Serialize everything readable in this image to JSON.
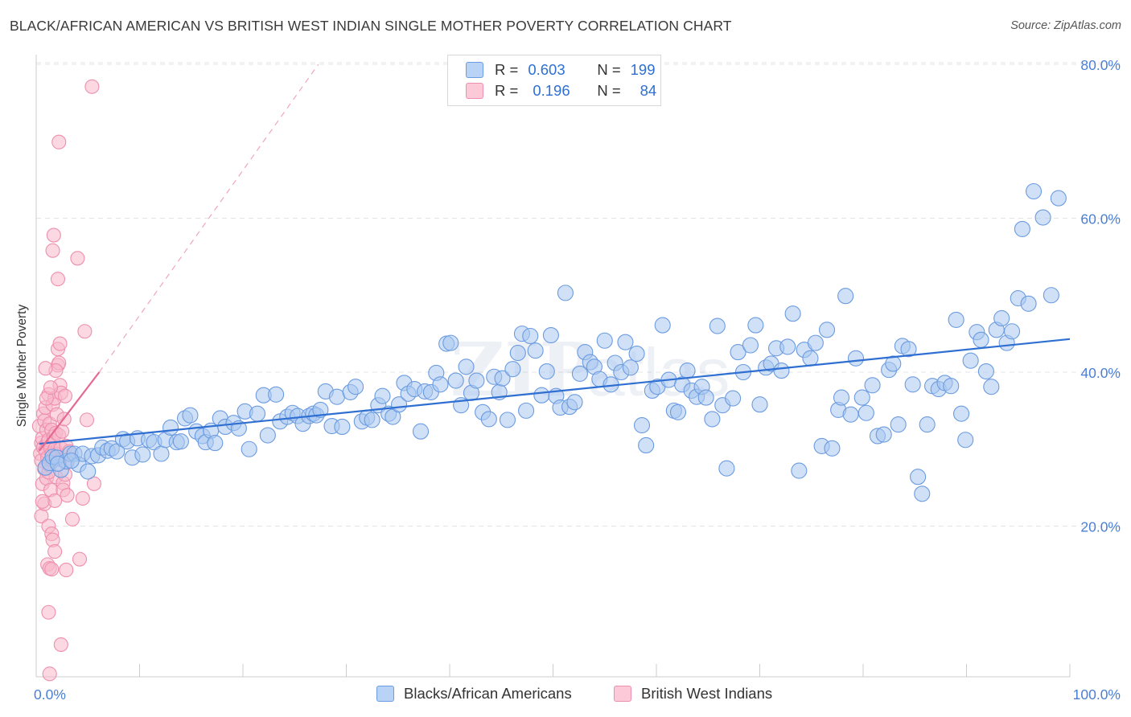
{
  "title": "BLACK/AFRICAN AMERICAN VS BRITISH WEST INDIAN SINGLE MOTHER POVERTY CORRELATION CHART",
  "source": "Source: ZipAtlas.com",
  "legend": {
    "blue": {
      "r_label": "R =",
      "r_value": "0.603",
      "n_label": "N =",
      "n_value": "199"
    },
    "pink": {
      "r_label": "R =",
      "r_value": "0.196",
      "n_label": "N =",
      "n_value": "84"
    }
  },
  "colors": {
    "blue_fill": "#aac8f0",
    "blue_stroke": "#6b9be0",
    "blue_line": "#2f6fd1",
    "pink_fill": "#f7b8cb",
    "pink_stroke": "#ee8fae",
    "pink_line": "#e46a93",
    "tick_text": "#4a7fd4",
    "grid": "#e4e4e4"
  },
  "chart_data": {
    "type": "scatter",
    "title": "BLACK/AFRICAN AMERICAN VS BRITISH WEST INDIAN SINGLE MOTHER POVERTY CORRELATION CHART",
    "xlabel": "",
    "ylabel": "Single Mother Poverty",
    "xlim": [
      0,
      100
    ],
    "ylim": [
      0,
      82
    ],
    "x_tick_labels": [
      "0.0%",
      "100.0%"
    ],
    "y_ticks": [
      20,
      40,
      60,
      80
    ],
    "y_tick_labels": [
      "20.0%",
      "40.0%",
      "60.0%",
      "80.0%"
    ],
    "grid": true,
    "legend_position": "bottom-center",
    "series": [
      {
        "name": "Blacks/African Americans",
        "color": "#aac8f0",
        "trend": {
          "x": [
            0.3,
            100
          ],
          "y": [
            30.7,
            44.3
          ]
        },
        "points": [
          [
            0.9,
            27.6
          ],
          [
            1.3,
            28.2
          ],
          [
            1.6,
            29.0
          ],
          [
            2.0,
            28.9
          ],
          [
            2.4,
            27.3
          ],
          [
            2.9,
            28.4
          ],
          [
            3.3,
            29.4
          ],
          [
            3.7,
            29.4
          ],
          [
            4.1,
            28.0
          ],
          [
            4.5,
            29.4
          ],
          [
            5.0,
            27.1
          ],
          [
            5.4,
            29.1
          ],
          [
            2.1,
            28.1
          ],
          [
            3.4,
            28.5
          ],
          [
            6.0,
            29.2
          ],
          [
            6.4,
            30.2
          ],
          [
            6.9,
            29.8
          ],
          [
            7.3,
            30.1
          ],
          [
            7.8,
            29.7
          ],
          [
            8.4,
            31.3
          ],
          [
            8.8,
            31.0
          ],
          [
            9.3,
            28.9
          ],
          [
            9.8,
            31.4
          ],
          [
            10.3,
            29.3
          ],
          [
            10.9,
            31.2
          ],
          [
            11.4,
            30.9
          ],
          [
            12.1,
            29.4
          ],
          [
            12.5,
            31.2
          ],
          [
            13.0,
            32.8
          ],
          [
            13.6,
            30.9
          ],
          [
            14.0,
            31.0
          ],
          [
            14.4,
            34.0
          ],
          [
            14.9,
            34.4
          ],
          [
            15.5,
            32.3
          ],
          [
            16.1,
            31.7
          ],
          [
            16.4,
            30.9
          ],
          [
            16.9,
            32.4
          ],
          [
            17.3,
            30.8
          ],
          [
            17.8,
            34.0
          ],
          [
            18.3,
            32.9
          ],
          [
            19.1,
            33.4
          ],
          [
            19.6,
            32.7
          ],
          [
            20.2,
            34.9
          ],
          [
            20.6,
            30.0
          ],
          [
            21.4,
            34.6
          ],
          [
            22.0,
            37.0
          ],
          [
            22.4,
            31.8
          ],
          [
            23.2,
            37.1
          ],
          [
            23.6,
            33.6
          ],
          [
            24.3,
            34.2
          ],
          [
            24.8,
            34.7
          ],
          [
            25.3,
            34.3
          ],
          [
            25.8,
            33.3
          ],
          [
            26.4,
            34.3
          ],
          [
            26.8,
            34.6
          ],
          [
            27.1,
            34.4
          ],
          [
            27.5,
            35.1
          ],
          [
            28.0,
            37.5
          ],
          [
            28.6,
            33.0
          ],
          [
            29.1,
            36.8
          ],
          [
            29.6,
            32.9
          ],
          [
            30.4,
            37.4
          ],
          [
            30.9,
            38.1
          ],
          [
            31.5,
            33.6
          ],
          [
            32.0,
            34.1
          ],
          [
            32.5,
            33.8
          ],
          [
            33.1,
            35.7
          ],
          [
            33.5,
            36.9
          ],
          [
            34.1,
            34.6
          ],
          [
            34.5,
            34.2
          ],
          [
            35.1,
            35.8
          ],
          [
            35.6,
            38.6
          ],
          [
            36.0,
            37.2
          ],
          [
            36.6,
            37.8
          ],
          [
            37.2,
            32.3
          ],
          [
            37.6,
            37.5
          ],
          [
            38.2,
            37.4
          ],
          [
            38.7,
            39.9
          ],
          [
            39.1,
            38.4
          ],
          [
            39.7,
            43.7
          ],
          [
            40.1,
            43.8
          ],
          [
            40.6,
            38.9
          ],
          [
            41.1,
            35.7
          ],
          [
            41.6,
            40.7
          ],
          [
            42.1,
            37.3
          ],
          [
            42.6,
            38.9
          ],
          [
            43.2,
            34.8
          ],
          [
            43.8,
            33.9
          ],
          [
            44.3,
            39.4
          ],
          [
            44.8,
            37.4
          ],
          [
            45.1,
            39.2
          ],
          [
            45.6,
            33.8
          ],
          [
            46.1,
            40.4
          ],
          [
            46.6,
            42.5
          ],
          [
            47.0,
            45.0
          ],
          [
            47.4,
            35.0
          ],
          [
            47.8,
            44.7
          ],
          [
            48.3,
            42.8
          ],
          [
            48.9,
            37.0
          ],
          [
            49.4,
            40.1
          ],
          [
            49.8,
            44.8
          ],
          [
            50.3,
            36.9
          ],
          [
            50.7,
            35.4
          ],
          [
            51.2,
            50.3
          ],
          [
            51.6,
            35.5
          ],
          [
            52.1,
            36.1
          ],
          [
            52.6,
            39.8
          ],
          [
            53.1,
            42.6
          ],
          [
            53.6,
            41.3
          ],
          [
            54.0,
            40.7
          ],
          [
            54.5,
            39.1
          ],
          [
            55.0,
            44.1
          ],
          [
            55.6,
            38.4
          ],
          [
            56.0,
            41.2
          ],
          [
            56.6,
            40.0
          ],
          [
            57.0,
            43.9
          ],
          [
            57.5,
            40.6
          ],
          [
            58.1,
            42.4
          ],
          [
            58.6,
            33.1
          ],
          [
            59.0,
            30.5
          ],
          [
            59.6,
            37.6
          ],
          [
            60.1,
            38.1
          ],
          [
            60.6,
            46.1
          ],
          [
            61.2,
            39.0
          ],
          [
            61.7,
            35.0
          ],
          [
            62.1,
            34.8
          ],
          [
            62.5,
            38.4
          ],
          [
            63.0,
            40.2
          ],
          [
            63.4,
            37.6
          ],
          [
            63.9,
            36.8
          ],
          [
            64.4,
            38.1
          ],
          [
            64.8,
            36.7
          ],
          [
            65.4,
            33.9
          ],
          [
            65.9,
            46.0
          ],
          [
            66.4,
            35.7
          ],
          [
            66.8,
            27.5
          ],
          [
            67.4,
            36.6
          ],
          [
            67.9,
            42.6
          ],
          [
            68.4,
            40.0
          ],
          [
            69.1,
            43.5
          ],
          [
            69.6,
            46.1
          ],
          [
            70.0,
            35.8
          ],
          [
            70.6,
            40.6
          ],
          [
            71.1,
            41.1
          ],
          [
            71.6,
            43.1
          ],
          [
            72.1,
            40.2
          ],
          [
            72.7,
            43.3
          ],
          [
            73.2,
            47.6
          ],
          [
            73.8,
            27.2
          ],
          [
            74.3,
            42.9
          ],
          [
            74.9,
            41.8
          ],
          [
            75.4,
            43.8
          ],
          [
            76.0,
            30.4
          ],
          [
            76.5,
            45.5
          ],
          [
            77.0,
            30.1
          ],
          [
            77.6,
            35.1
          ],
          [
            77.9,
            36.7
          ],
          [
            78.3,
            49.9
          ],
          [
            78.8,
            34.5
          ],
          [
            79.3,
            41.8
          ],
          [
            79.9,
            36.7
          ],
          [
            80.3,
            34.7
          ],
          [
            80.9,
            38.3
          ],
          [
            81.4,
            31.7
          ],
          [
            82.0,
            31.9
          ],
          [
            82.5,
            40.3
          ],
          [
            82.9,
            41.1
          ],
          [
            83.4,
            33.2
          ],
          [
            83.8,
            43.4
          ],
          [
            84.4,
            43.0
          ],
          [
            84.8,
            38.4
          ],
          [
            85.3,
            26.4
          ],
          [
            85.7,
            24.2
          ],
          [
            86.2,
            33.2
          ],
          [
            86.7,
            38.2
          ],
          [
            87.3,
            37.8
          ],
          [
            87.9,
            38.6
          ],
          [
            88.5,
            38.2
          ],
          [
            89.0,
            46.8
          ],
          [
            89.5,
            34.6
          ],
          [
            89.9,
            31.2
          ],
          [
            90.4,
            41.5
          ],
          [
            91.0,
            45.2
          ],
          [
            91.4,
            44.2
          ],
          [
            91.9,
            40.1
          ],
          [
            92.4,
            38.1
          ],
          [
            92.9,
            45.5
          ],
          [
            93.4,
            47.0
          ],
          [
            93.9,
            43.8
          ],
          [
            94.4,
            45.3
          ],
          [
            95.0,
            49.6
          ],
          [
            95.4,
            58.6
          ],
          [
            96.0,
            48.9
          ],
          [
            96.5,
            63.5
          ],
          [
            97.4,
            60.1
          ],
          [
            98.2,
            50.0
          ],
          [
            98.9,
            62.6
          ]
        ]
      },
      {
        "name": "British West Indians",
        "color": "#f7b8cb",
        "trend": {
          "x": [
            0.3,
            6.1
          ],
          "y": [
            29.8,
            40.0
          ]
        },
        "extension": {
          "x": [
            6.1,
            27.3
          ],
          "y": [
            40.0,
            80.0
          ]
        },
        "points": [
          [
            0.3,
            33.0
          ],
          [
            0.4,
            29.4
          ],
          [
            0.5,
            30.8
          ],
          [
            0.5,
            28.5
          ],
          [
            0.6,
            31.4
          ],
          [
            0.6,
            25.5
          ],
          [
            0.7,
            34.6
          ],
          [
            0.7,
            30.2
          ],
          [
            0.8,
            27.4
          ],
          [
            0.8,
            33.7
          ],
          [
            0.9,
            29.8
          ],
          [
            0.9,
            35.4
          ],
          [
            1.0,
            32.5
          ],
          [
            1.0,
            26.2
          ],
          [
            1.1,
            30.9
          ],
          [
            1.1,
            28.9
          ],
          [
            1.2,
            31.2
          ],
          [
            1.2,
            37.1
          ],
          [
            1.3,
            27.9
          ],
          [
            1.3,
            33.3
          ],
          [
            1.4,
            30.1
          ],
          [
            1.4,
            24.7
          ],
          [
            1.5,
            29.4
          ],
          [
            1.5,
            32.5
          ],
          [
            1.6,
            35.8
          ],
          [
            1.6,
            28.4
          ],
          [
            1.7,
            31.6
          ],
          [
            1.8,
            30.0
          ],
          [
            1.8,
            36.6
          ],
          [
            1.9,
            26.4
          ],
          [
            1.9,
            32.1
          ],
          [
            2.0,
            29.3
          ],
          [
            2.0,
            34.5
          ],
          [
            2.1,
            40.9
          ],
          [
            2.1,
            43.0
          ],
          [
            2.2,
            31.8
          ],
          [
            2.3,
            38.3
          ],
          [
            2.4,
            37.3
          ],
          [
            2.4,
            30.1
          ],
          [
            2.5,
            32.3
          ],
          [
            2.6,
            25.6
          ],
          [
            2.7,
            33.9
          ],
          [
            2.8,
            36.9
          ],
          [
            2.9,
            30.4
          ],
          [
            3.0,
            28.3
          ],
          [
            0.5,
            21.3
          ],
          [
            0.8,
            22.9
          ],
          [
            1.1,
            15.0
          ],
          [
            1.2,
            20.0
          ],
          [
            1.3,
            14.5
          ],
          [
            1.5,
            19.0
          ],
          [
            1.6,
            18.2
          ],
          [
            1.8,
            16.7
          ],
          [
            1.2,
            8.8
          ],
          [
            2.4,
            4.6
          ],
          [
            1.3,
            0.8
          ],
          [
            1.6,
            55.8
          ],
          [
            1.7,
            57.8
          ],
          [
            2.1,
            52.1
          ],
          [
            4.0,
            54.8
          ],
          [
            2.3,
            43.7
          ],
          [
            4.7,
            45.3
          ],
          [
            2.2,
            41.2
          ],
          [
            1.9,
            40.2
          ],
          [
            0.9,
            40.5
          ],
          [
            2.6,
            24.7
          ],
          [
            3.0,
            24.0
          ],
          [
            3.5,
            20.9
          ],
          [
            4.5,
            23.6
          ],
          [
            5.6,
            25.5
          ],
          [
            4.9,
            33.8
          ],
          [
            4.2,
            15.7
          ],
          [
            2.9,
            14.3
          ],
          [
            1.5,
            14.4
          ],
          [
            2.3,
            28.6
          ],
          [
            2.8,
            26.7
          ],
          [
            1.2,
            27.0
          ],
          [
            1.8,
            23.3
          ],
          [
            2.2,
            69.9
          ],
          [
            5.4,
            77.1
          ],
          [
            0.6,
            23.2
          ],
          [
            1.0,
            36.6
          ],
          [
            1.4,
            38.0
          ],
          [
            3.2,
            29.7
          ]
        ]
      }
    ]
  }
}
